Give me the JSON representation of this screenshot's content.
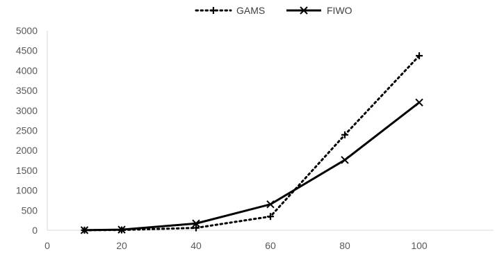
{
  "chart_data": {
    "type": "line",
    "title": "",
    "xlabel": "",
    "ylabel": "",
    "xlim": [
      0,
      120
    ],
    "ylim": [
      0,
      5000
    ],
    "x_ticks": [
      0,
      20,
      40,
      60,
      80,
      100
    ],
    "y_ticks": [
      0,
      500,
      1000,
      1500,
      2000,
      2500,
      3000,
      3500,
      4000,
      4500,
      5000
    ],
    "grid": false,
    "legend_position": "top",
    "series": [
      {
        "name": "GAMS",
        "style": "dotted",
        "marker": "plus",
        "color": "#000000",
        "x": [
          10,
          20,
          40,
          60,
          80,
          100
        ],
        "values": [
          2,
          8,
          60,
          345,
          2390,
          4370
        ]
      },
      {
        "name": "FIWO",
        "style": "solid",
        "marker": "x",
        "color": "#000000",
        "x": [
          10,
          20,
          40,
          60,
          80,
          100
        ],
        "values": [
          2,
          15,
          170,
          650,
          1760,
          3200
        ]
      }
    ]
  }
}
